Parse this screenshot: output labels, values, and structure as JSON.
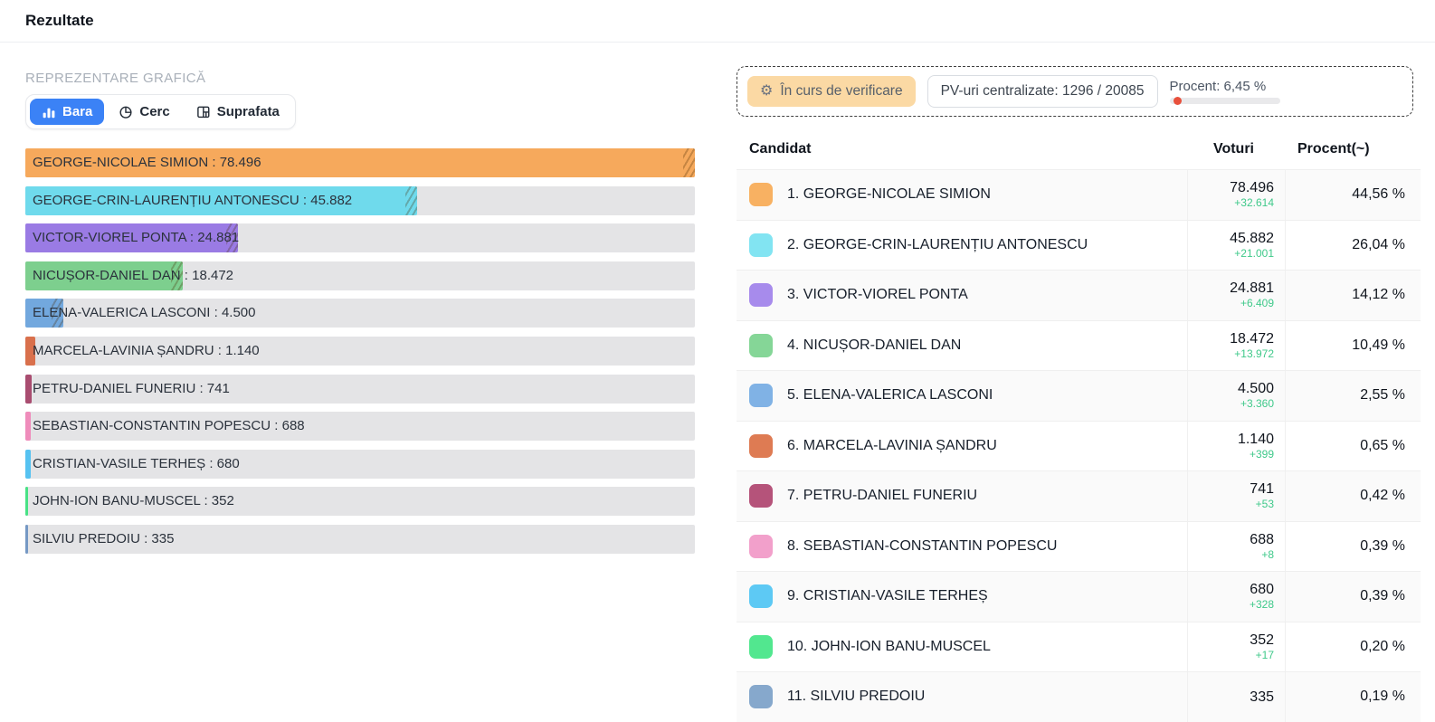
{
  "page": {
    "title": "Rezultate"
  },
  "chart_section": {
    "heading": "REPREZENTARE GRAFICĂ",
    "tabs": [
      {
        "label": "Bara",
        "icon": "bar-chart-icon",
        "active": true
      },
      {
        "label": "Cerc",
        "icon": "pie-chart-icon",
        "active": false
      },
      {
        "label": "Suprafata",
        "icon": "treemap-icon",
        "active": false
      }
    ]
  },
  "chart_data": {
    "type": "bar",
    "orientation": "horizontal",
    "max_value": 78496,
    "track_color": "#e4e4e6",
    "bars": [
      {
        "label": "GEORGE-NICOLAE SIMION : 78.496",
        "name": "GEORGE-NICOLAE SIMION",
        "value": 78496,
        "color": "#F6A95C"
      },
      {
        "label": "GEORGE-CRIN-LAURENȚIU ANTONESCU : 45.882",
        "name": "GEORGE-CRIN-LAURENȚIU ANTONESCU",
        "value": 45882,
        "color": "#6FDAEC"
      },
      {
        "label": "VICTOR-VIOREL PONTA : 24.881",
        "name": "VICTOR-VIOREL PONTA",
        "value": 24881,
        "color": "#9A7BE4"
      },
      {
        "label": "NICUȘOR-DANIEL DAN : 18.472",
        "name": "NICUȘOR-DANIEL DAN",
        "value": 18472,
        "color": "#7DCF8E"
      },
      {
        "label": "ELENA-VALERICA LASCONI : 4.500",
        "name": "ELENA-VALERICA LASCONI",
        "value": 4500,
        "color": "#72A8DE"
      },
      {
        "label": "MARCELA-LAVINIA ȘANDRU : 1.140",
        "name": "MARCELA-LAVINIA ȘANDRU",
        "value": 1140,
        "color": "#D9704C"
      },
      {
        "label": "PETRU-DANIEL FUNERIU : 741",
        "name": "PETRU-DANIEL FUNERIU",
        "value": 741,
        "color": "#A94D70"
      },
      {
        "label": "SEBASTIAN-CONSTANTIN POPESCU : 688",
        "name": "SEBASTIAN-CONSTANTIN POPESCU",
        "value": 688,
        "color": "#EF8CBB"
      },
      {
        "label": "CRISTIAN-VASILE TERHEȘ : 680",
        "name": "CRISTIAN-VASILE TERHEȘ",
        "value": 680,
        "color": "#56C2F1"
      },
      {
        "label": "JOHN-ION BANU-MUSCEL : 352",
        "name": "JOHN-ION BANU-MUSCEL",
        "value": 352,
        "color": "#48E285"
      },
      {
        "label": "SILVIU PREDOIU : 335",
        "name": "SILVIU PREDOIU",
        "value": 335,
        "color": "#7598C4"
      }
    ]
  },
  "status": {
    "badge_label": "În curs de verificare",
    "badge_icon": "gear-icon",
    "badge_color": "#fbd9a4",
    "pv_label": "PV-uri centralizate: 1296 / 20085",
    "procent_label": "Procent: 6,45 %",
    "procent_value": 6.45,
    "progress_dot_color": "#e8503c"
  },
  "table": {
    "columns": [
      "Candidat",
      "Voturi",
      "Procent(~)"
    ],
    "delta_color": "#3fc98a",
    "rows": [
      {
        "rank": "1.",
        "name": "GEORGE-NICOLAE SIMION",
        "votes": "78.496",
        "delta": "+32.614",
        "percent": "44,56 %",
        "swatch": "#F8B162"
      },
      {
        "rank": "2.",
        "name": "GEORGE-CRIN-LAURENȚIU ANTONESCU",
        "votes": "45.882",
        "delta": "+21.001",
        "percent": "26,04 %",
        "swatch": "#82E4F2"
      },
      {
        "rank": "3.",
        "name": "VICTOR-VIOREL PONTA",
        "votes": "24.881",
        "delta": "+6.409",
        "percent": "14,12 %",
        "swatch": "#A78BEC"
      },
      {
        "rank": "4.",
        "name": "NICUȘOR-DANIEL DAN",
        "votes": "18.472",
        "delta": "+13.972",
        "percent": "10,49 %",
        "swatch": "#85D697"
      },
      {
        "rank": "5.",
        "name": "ELENA-VALERICA LASCONI",
        "votes": "4.500",
        "delta": "+3.360",
        "percent": "2,55 %",
        "swatch": "#80B2E5"
      },
      {
        "rank": "6.",
        "name": "MARCELA-LAVINIA ȘANDRU",
        "votes": "1.140",
        "delta": "+399",
        "percent": "0,65 %",
        "swatch": "#DE7B53"
      },
      {
        "rank": "7.",
        "name": "PETRU-DANIEL FUNERIU",
        "votes": "741",
        "delta": "+53",
        "percent": "0,42 %",
        "swatch": "#B5537A"
      },
      {
        "rank": "8.",
        "name": "SEBASTIAN-CONSTANTIN POPESCU",
        "votes": "688",
        "delta": "+8",
        "percent": "0,39 %",
        "swatch": "#F2A0CB"
      },
      {
        "rank": "9.",
        "name": "CRISTIAN-VASILE TERHEȘ",
        "votes": "680",
        "delta": "+328",
        "percent": "0,39 %",
        "swatch": "#5DC9F4"
      },
      {
        "rank": "10.",
        "name": "JOHN-ION BANU-MUSCEL",
        "votes": "352",
        "delta": "+17",
        "percent": "0,20 %",
        "swatch": "#52E78F"
      },
      {
        "rank": "11.",
        "name": "SILVIU PREDOIU",
        "votes": "335",
        "delta": "",
        "percent": "0,19 %",
        "swatch": "#86A8CC"
      }
    ]
  }
}
